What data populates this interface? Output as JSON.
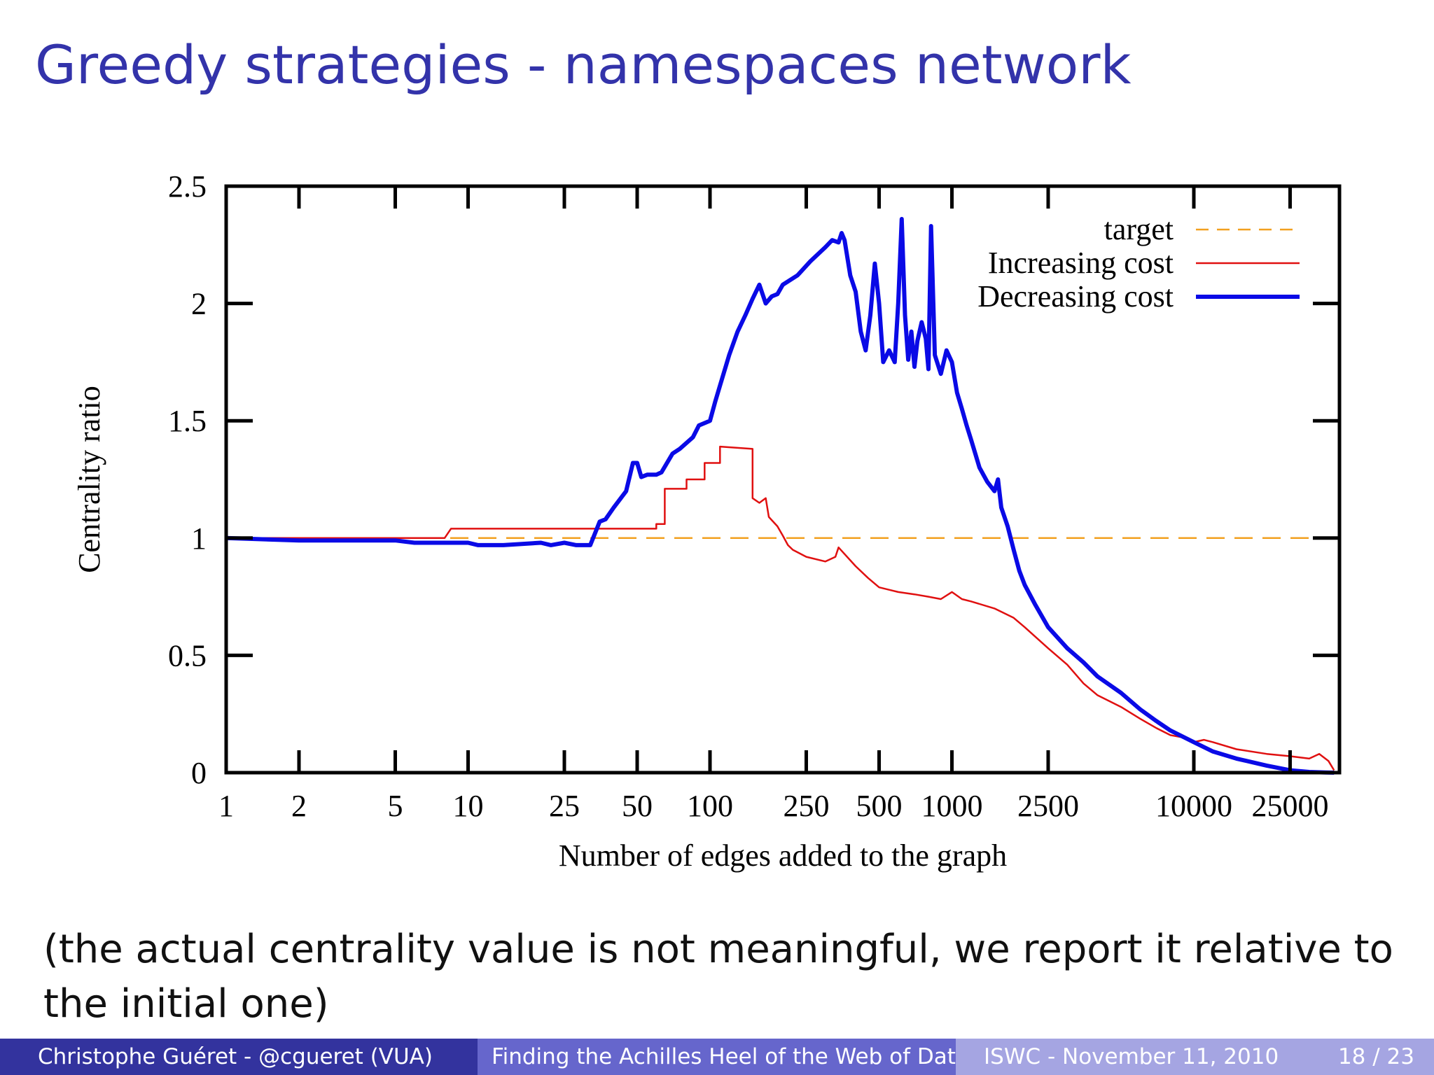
{
  "slide": {
    "title": "Greedy strategies - namespaces network",
    "note": "(the actual centrality value is not meaningful, we report it relative to the initial one)"
  },
  "footer": {
    "author": "Christophe Guéret - @cgueret (VUA)",
    "talk": "Finding the Achilles Heel of the Web of Data",
    "venue_date": "ISWC - November 11, 2010",
    "page": "18 / 23"
  },
  "colors": {
    "title": "#3333aa",
    "footer_left": "#33339e",
    "footer_mid": "#6666cc",
    "footer_right": "#a5a5e2",
    "target": "#f2a01f",
    "increasing": "#e01010",
    "decreasing": "#0a0ae6"
  },
  "chart_data": {
    "type": "line",
    "xlabel": "Number of edges added to the graph",
    "ylabel": "Centrality ratio",
    "x_scale": "log",
    "xlim": [
      1,
      40000
    ],
    "ylim": [
      0,
      2.5
    ],
    "x_ticks": [
      1,
      2,
      5,
      10,
      25,
      50,
      100,
      250,
      500,
      1000,
      2500,
      10000,
      25000
    ],
    "x_tick_labels": [
      "1",
      "2",
      "5",
      "10",
      "25",
      "50",
      "100",
      "250",
      "500",
      "1000",
      "2500",
      "10000",
      "25000"
    ],
    "y_ticks": [
      0,
      0.5,
      1,
      1.5,
      2,
      2.5
    ],
    "y_tick_labels": [
      "0",
      "0.5",
      "1",
      "1.5",
      "2",
      "2.5"
    ],
    "grid": false,
    "legend_position": "top-right",
    "series": [
      {
        "name": "target",
        "style": "dashed",
        "x": [
          1,
          40000
        ],
        "y": [
          1,
          1
        ]
      },
      {
        "name": "Increasing cost",
        "style": "solid-thin",
        "x": [
          1,
          5,
          8,
          8.5,
          15,
          20,
          30,
          60,
          60,
          65,
          65,
          80,
          80,
          95,
          95,
          110,
          110,
          150,
          150,
          160,
          170,
          175,
          190,
          200,
          210,
          220,
          250,
          300,
          330,
          340,
          400,
          450,
          500,
          600,
          700,
          800,
          900,
          1000,
          1100,
          1200,
          1500,
          1800,
          2000,
          2500,
          3000,
          3500,
          4000,
          5000,
          6000,
          7000,
          8000,
          9000,
          10000,
          11000,
          12000,
          15000,
          20000,
          25000,
          30000,
          33000,
          36000,
          38000
        ],
        "y": [
          1,
          1,
          1,
          1.04,
          1.04,
          1.04,
          1.04,
          1.04,
          1.06,
          1.06,
          1.21,
          1.21,
          1.25,
          1.25,
          1.32,
          1.32,
          1.39,
          1.38,
          1.17,
          1.15,
          1.17,
          1.09,
          1.05,
          1.01,
          0.97,
          0.95,
          0.92,
          0.9,
          0.92,
          0.96,
          0.88,
          0.83,
          0.79,
          0.77,
          0.76,
          0.75,
          0.74,
          0.77,
          0.74,
          0.73,
          0.7,
          0.66,
          0.62,
          0.53,
          0.46,
          0.38,
          0.33,
          0.28,
          0.23,
          0.19,
          0.16,
          0.15,
          0.13,
          0.14,
          0.13,
          0.1,
          0.08,
          0.07,
          0.06,
          0.08,
          0.05,
          0.01
        ]
      },
      {
        "name": "Decreasing cost",
        "style": "solid-thick",
        "x": [
          1,
          2,
          5,
          6,
          10,
          11,
          14,
          20,
          22,
          25,
          28,
          32,
          35,
          37,
          40,
          45,
          48,
          50,
          52,
          55,
          60,
          63,
          70,
          75,
          85,
          90,
          100,
          105,
          110,
          120,
          130,
          140,
          150,
          160,
          170,
          180,
          190,
          200,
          230,
          260,
          300,
          320,
          340,
          350,
          360,
          380,
          400,
          420,
          440,
          460,
          480,
          500,
          520,
          550,
          580,
          600,
          620,
          640,
          660,
          680,
          700,
          720,
          750,
          780,
          800,
          820,
          850,
          900,
          950,
          1000,
          1050,
          1100,
          1150,
          1200,
          1300,
          1400,
          1500,
          1550,
          1600,
          1700,
          1800,
          1900,
          2000,
          2200,
          2500,
          3000,
          3500,
          4000,
          5000,
          6000,
          7000,
          8000,
          10000,
          12000,
          15000,
          20000,
          25000,
          30000,
          35000,
          38000
        ],
        "y": [
          1.0,
          0.99,
          0.99,
          0.98,
          0.98,
          0.97,
          0.97,
          0.98,
          0.97,
          0.98,
          0.97,
          0.97,
          1.07,
          1.08,
          1.13,
          1.2,
          1.32,
          1.32,
          1.26,
          1.27,
          1.27,
          1.28,
          1.36,
          1.38,
          1.43,
          1.48,
          1.5,
          1.58,
          1.65,
          1.78,
          1.88,
          1.95,
          2.02,
          2.08,
          2.0,
          2.03,
          2.04,
          2.08,
          2.12,
          2.18,
          2.24,
          2.27,
          2.26,
          2.3,
          2.27,
          2.12,
          2.05,
          1.88,
          1.8,
          1.95,
          2.17,
          2.0,
          1.75,
          1.8,
          1.75,
          2.0,
          2.36,
          1.95,
          1.76,
          1.88,
          1.73,
          1.84,
          1.92,
          1.85,
          1.72,
          2.33,
          1.78,
          1.7,
          1.8,
          1.75,
          1.62,
          1.55,
          1.48,
          1.42,
          1.3,
          1.24,
          1.2,
          1.25,
          1.13,
          1.05,
          0.95,
          0.86,
          0.8,
          0.72,
          0.62,
          0.53,
          0.47,
          0.41,
          0.34,
          0.27,
          0.22,
          0.18,
          0.13,
          0.09,
          0.06,
          0.03,
          0.01,
          0.003,
          0.001,
          0.0
        ]
      }
    ]
  }
}
